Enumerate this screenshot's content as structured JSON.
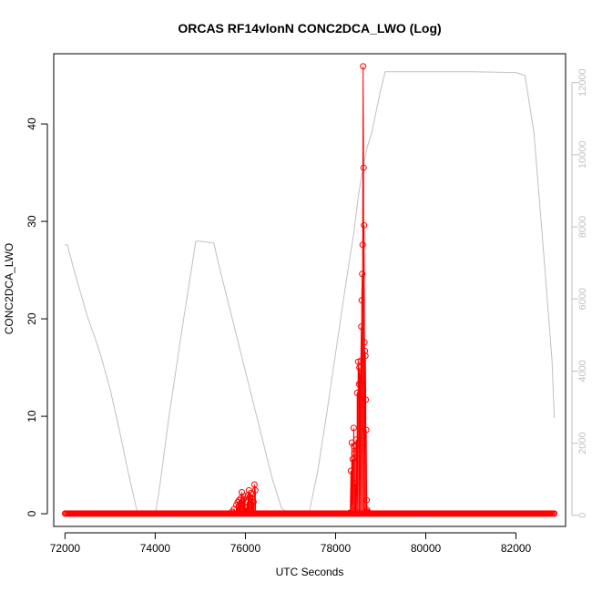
{
  "chart_data": {
    "type": "scatter",
    "title": "ORCAS RF14vlonN CONC2DCA_LWO (Log)",
    "xlabel": "UTC Seconds",
    "ylabel": "CONC2DCA_LWO",
    "x_range": [
      71750,
      83100
    ],
    "y_range": [
      -1.3,
      47.2
    ],
    "y2_range": [
      -308,
      12800
    ],
    "x_ticks": [
      72000,
      74000,
      76000,
      78000,
      80000,
      82000
    ],
    "y_ticks": [
      0,
      10,
      20,
      30,
      40
    ],
    "y2_ticks": [
      0,
      2000,
      4000,
      6000,
      8000,
      10000,
      12000
    ],
    "grid": false,
    "colors": {
      "series": "#ff0000",
      "secondary": "#c0c0c0",
      "axis": "#000000"
    },
    "series": [
      {
        "role": "primary",
        "baseline": {
          "x_start": 72000,
          "x_end": 82850,
          "step": 25,
          "y": 0.02
        },
        "x": [
          75700,
          75750,
          75800,
          75830,
          75860,
          75880,
          75900,
          75920,
          75940,
          75960,
          75980,
          76000,
          76020,
          76040,
          76060,
          76080,
          76100,
          76120,
          76140,
          76160,
          76180,
          76200,
          76220,
          78320,
          78340,
          78360,
          78380,
          78400,
          78410,
          78420,
          78430,
          78440,
          78450,
          78460,
          78480,
          78500,
          78520,
          78530,
          78540,
          78550,
          78560,
          78570,
          78580,
          78590,
          78600,
          78610,
          78620,
          78630,
          78640,
          78650,
          78660,
          78670,
          78680,
          78690,
          78700,
          78710,
          78720
        ],
        "y": [
          0.2,
          0.5,
          0.9,
          1.2,
          1.4,
          1.0,
          1.6,
          2.2,
          1.3,
          1.5,
          1.8,
          0.3,
          0.6,
          1.2,
          1.9,
          2.4,
          1.7,
          2.1,
          1.6,
          2.0,
          1.2,
          3.0,
          2.4,
          0.1,
          4.4,
          7.3,
          5.6,
          8.8,
          6.9,
          6.2,
          0.3,
          3.1,
          7.0,
          7.6,
          12.4,
          15.6,
          13.3,
          15.0,
          12.3,
          13.4,
          15.7,
          19.2,
          21.9,
          24.6,
          27.6,
          45.9,
          35.5,
          29.6,
          17.6,
          16.7,
          16.2,
          11.7,
          8.6,
          1.4,
          0.4,
          0.2,
          0.1
        ]
      },
      {
        "role": "secondary",
        "x": [
          72000,
          72050,
          72200,
          72500,
          72700,
          72800,
          73000,
          73200,
          73400,
          73600,
          73800,
          74000,
          74100,
          74300,
          74600,
          74900,
          75000,
          75300,
          75400,
          75600,
          75800,
          76000,
          76200,
          76400,
          76600,
          76800,
          77000,
          77200,
          77400,
          77600,
          77800,
          78000,
          78200,
          78400,
          78500,
          78600,
          78700,
          78800,
          78900,
          79000,
          79100,
          80000,
          81000,
          82000,
          82200,
          82400,
          82600,
          82800,
          82850
        ],
        "y": [
          7500,
          7500,
          6800,
          5500,
          4800,
          4400,
          3500,
          2400,
          1200,
          100,
          0,
          0,
          800,
          2700,
          5200,
          7600,
          7600,
          7550,
          7000,
          6000,
          5000,
          4000,
          3000,
          2000,
          1000,
          200,
          0,
          0,
          0,
          1200,
          2800,
          4500,
          6200,
          7800,
          8800,
          9600,
          10200,
          10600,
          11200,
          11800,
          12300,
          12300,
          12300,
          12280,
          12200,
          10600,
          7500,
          4300,
          2700
        ]
      }
    ]
  }
}
